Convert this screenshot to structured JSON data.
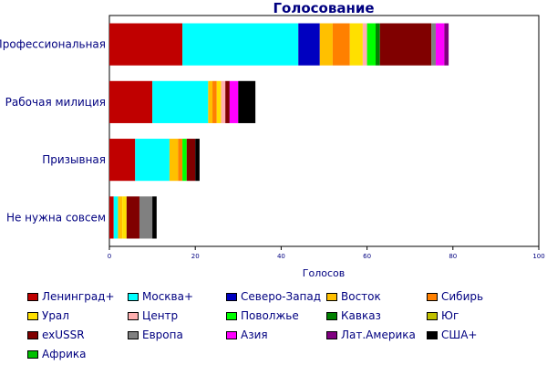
{
  "chart_data": {
    "type": "bar",
    "orientation": "horizontal",
    "stacked": true,
    "title": "Голосование",
    "xlabel": "Голосов",
    "ylabel": "",
    "xlim": [
      0,
      100
    ],
    "xticks": [
      0,
      20,
      40,
      60,
      80,
      100
    ],
    "grid": false,
    "legend_position": "bottom",
    "categories": [
      "Профессиональная",
      "Рабочая милиция",
      "Призывная",
      "Не нужна совсем"
    ],
    "series": [
      {
        "name": "Ленинград+",
        "color": "#c00000",
        "values": [
          17,
          10,
          6,
          1
        ]
      },
      {
        "name": "Москва+",
        "color": "#00ffff",
        "values": [
          27,
          13,
          8,
          1
        ]
      },
      {
        "name": "Северо-Запад",
        "color": "#0000c0",
        "values": [
          5,
          0,
          0,
          0
        ]
      },
      {
        "name": "Восток",
        "color": "#ffc000",
        "values": [
          3,
          1,
          2,
          1
        ]
      },
      {
        "name": "Сибирь",
        "color": "#ff8000",
        "values": [
          4,
          1,
          1,
          0
        ]
      },
      {
        "name": "Урал",
        "color": "#ffe000",
        "values": [
          3,
          1,
          0,
          1
        ]
      },
      {
        "name": "Центр",
        "color": "#ffb0b0",
        "values": [
          1,
          1,
          0,
          0
        ]
      },
      {
        "name": "Поволжье",
        "color": "#00ff00",
        "values": [
          2,
          0,
          1,
          0
        ]
      },
      {
        "name": "Кавказ",
        "color": "#008000",
        "values": [
          1,
          0,
          0,
          0
        ]
      },
      {
        "name": "Юг",
        "color": "#c0c000",
        "values": [
          0,
          0,
          0,
          0
        ]
      },
      {
        "name": "exUSSR",
        "color": "#800000",
        "values": [
          12,
          1,
          2,
          3
        ]
      },
      {
        "name": "Европа",
        "color": "#808080",
        "values": [
          1,
          0,
          0,
          3
        ]
      },
      {
        "name": "Азия",
        "color": "#ff00ff",
        "values": [
          2,
          2,
          0,
          0
        ]
      },
      {
        "name": "Лат.Америка",
        "color": "#800080",
        "values": [
          1,
          0,
          0,
          0
        ]
      },
      {
        "name": "США+",
        "color": "#000000",
        "values": [
          0,
          4,
          1,
          1
        ]
      },
      {
        "name": "Африка",
        "color": "#00c000",
        "values": [
          0,
          0,
          0,
          0
        ]
      }
    ]
  }
}
